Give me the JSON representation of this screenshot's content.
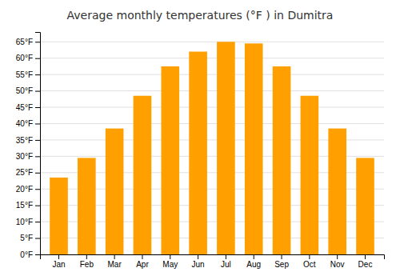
{
  "chart_data": {
    "type": "bar",
    "title": "Average monthly temperatures (°F ) in Dumitra",
    "categories": [
      "Jan",
      "Feb",
      "Mar",
      "Apr",
      "May",
      "Jun",
      "Jul",
      "Aug",
      "Sep",
      "Oct",
      "Nov",
      "Dec"
    ],
    "values": [
      23.5,
      29.5,
      38.5,
      48.5,
      57.5,
      62.0,
      65.0,
      64.5,
      57.5,
      48.5,
      38.5,
      29.5
    ],
    "color": "#FFA000",
    "ylim": [
      0,
      68
    ],
    "yticks": [
      {
        "value": 0,
        "label": "0°F"
      },
      {
        "value": 5,
        "label": "5°F"
      },
      {
        "value": 10,
        "label": "10°F"
      },
      {
        "value": 15,
        "label": "15°F"
      },
      {
        "value": 20,
        "label": "20°F"
      },
      {
        "value": 25,
        "label": "25°F"
      },
      {
        "value": 30,
        "label": "30°F"
      },
      {
        "value": 35,
        "label": "35°F"
      },
      {
        "value": 40,
        "label": "40°F"
      },
      {
        "value": 45,
        "label": "45°F"
      },
      {
        "value": 50,
        "label": "50°F"
      },
      {
        "value": 55,
        "label": "55°F"
      },
      {
        "value": 60,
        "label": "60°F"
      },
      {
        "value": 65,
        "label": "65°F"
      }
    ],
    "grid": true
  }
}
